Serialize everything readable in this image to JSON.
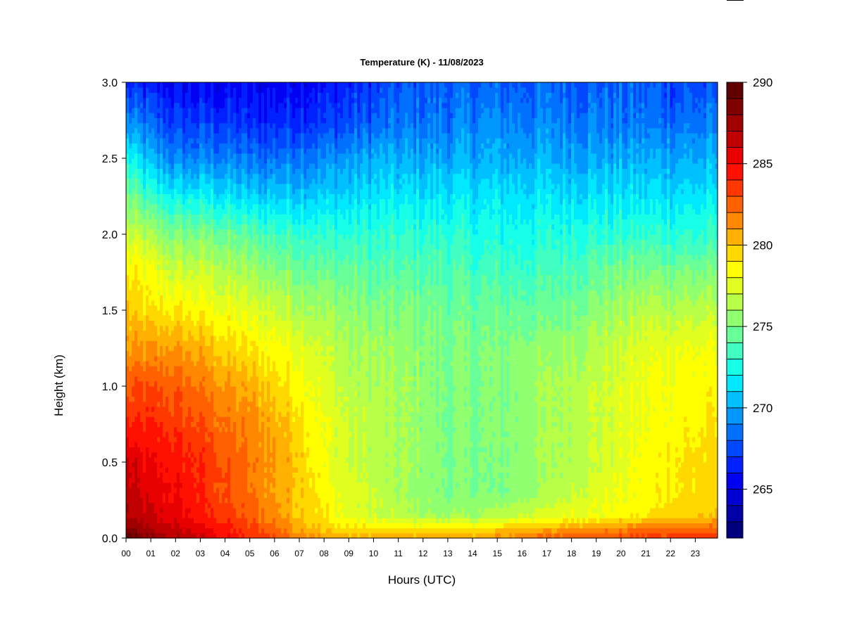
{
  "chart_data": {
    "type": "heatmap",
    "title": "Temperature (K) - 11/08/2023",
    "xlabel": "Hours (UTC)",
    "ylabel": "Height (km)",
    "x_ticks": [
      "00",
      "01",
      "02",
      "03",
      "04",
      "05",
      "06",
      "07",
      "08",
      "09",
      "10",
      "11",
      "12",
      "13",
      "14",
      "15",
      "16",
      "17",
      "18",
      "19",
      "20",
      "21",
      "22",
      "23"
    ],
    "xlim": [
      0,
      23.9
    ],
    "y_ticks": [
      "0.0",
      "0.5",
      "1.0",
      "1.5",
      "2.0",
      "2.5",
      "3.0"
    ],
    "ylim": [
      0,
      3.0
    ],
    "colorbar": {
      "ticks": [
        "265",
        "270",
        "275",
        "280",
        "285",
        "290"
      ],
      "range": [
        262,
        290
      ],
      "levels": 28,
      "colors": [
        "#00007f",
        "#0000a6",
        "#0000d0",
        "#0000f5",
        "#0020ff",
        "#0048ff",
        "#0070ff",
        "#0098ff",
        "#00c0ff",
        "#00e8ff",
        "#18ffe8",
        "#40ffc0",
        "#68ff98",
        "#90ff70",
        "#b8ff48",
        "#e0ff20",
        "#ffff00",
        "#ffd800",
        "#ffb000",
        "#ff8800",
        "#ff6000",
        "#ff3800",
        "#ff1000",
        "#e80000",
        "#c00000",
        "#a00000",
        "#800000",
        "#600000"
      ]
    },
    "temperature_grid": {
      "hours": [
        0,
        1,
        2,
        3,
        4,
        5,
        6,
        7,
        8,
        9,
        10,
        11,
        12,
        13,
        14,
        15,
        16,
        17,
        18,
        19,
        20,
        21,
        22,
        23.9
      ],
      "heights_km": [
        0.0,
        0.05,
        0.15,
        0.3,
        0.5,
        0.75,
        1.0,
        1.25,
        1.5,
        1.75,
        2.0,
        2.25,
        2.5,
        2.75,
        3.0
      ],
      "values_K": [
        [
          289.5,
          288.5,
          287,
          286.5,
          286,
          284,
          282.5,
          281,
          280,
          279,
          277,
          275,
          272.5,
          269,
          266.5
        ],
        [
          288.0,
          287.0,
          286,
          285.5,
          285,
          284,
          283,
          281,
          279,
          278,
          276,
          273,
          270,
          268,
          266
        ],
        [
          287.0,
          286.5,
          285.5,
          285,
          284.5,
          283.5,
          282.5,
          281,
          279,
          277,
          275,
          272,
          269,
          267,
          265.5
        ],
        [
          286.0,
          285.5,
          284.5,
          284,
          284,
          283,
          282,
          280.5,
          278.5,
          277,
          275,
          272,
          269,
          267,
          265.5
        ],
        [
          285.0,
          284.5,
          283.5,
          283,
          283,
          282,
          281,
          279.5,
          278,
          276.5,
          274.5,
          271.5,
          269,
          267,
          265.5
        ],
        [
          284.0,
          283.5,
          282.5,
          282,
          282,
          281.5,
          280.5,
          279,
          277.5,
          276,
          274,
          271,
          268.5,
          266.5,
          265.5
        ],
        [
          283.0,
          282.5,
          281.5,
          281,
          281,
          280.5,
          279.5,
          278.5,
          277,
          275.5,
          273.5,
          271,
          268.5,
          266.5,
          265.5
        ],
        [
          282.0,
          281,
          280,
          280,
          280,
          279.5,
          278.5,
          278,
          276.5,
          275,
          273.5,
          271,
          269,
          267,
          266
        ],
        [
          281.0,
          280,
          279,
          278.5,
          278,
          278,
          277.5,
          277,
          276,
          274.5,
          273,
          271,
          269,
          267,
          266
        ],
        [
          280.5,
          279.5,
          277.5,
          277.5,
          277,
          277,
          276.5,
          276,
          275.5,
          274.5,
          273,
          271,
          269.5,
          267.5,
          266.5
        ],
        [
          280.5,
          279.5,
          277,
          277,
          276.5,
          276.5,
          276,
          276,
          275,
          274,
          273,
          271.5,
          270,
          268,
          267
        ],
        [
          280.5,
          279.5,
          276.5,
          276,
          276,
          276,
          276,
          275.5,
          275,
          274,
          273,
          271.5,
          270,
          268.5,
          267.5
        ],
        [
          281.0,
          279.5,
          276,
          275.5,
          275.5,
          275.5,
          275.5,
          275.5,
          275,
          274,
          273,
          271.5,
          270,
          268.5,
          268
        ],
        [
          281.0,
          279.5,
          276,
          275,
          275,
          275,
          275,
          275,
          274.5,
          274,
          273,
          271.5,
          270,
          268.5,
          268
        ],
        [
          281.0,
          279.5,
          276,
          275,
          275,
          275,
          275,
          275,
          274.5,
          273.5,
          272.5,
          271.5,
          270,
          269,
          268
        ],
        [
          281.0,
          280,
          276.5,
          275,
          275,
          275,
          275,
          275,
          274.5,
          273.5,
          272.5,
          271.5,
          270,
          269,
          268
        ],
        [
          282.0,
          280.5,
          277,
          275.5,
          275.5,
          275.5,
          275.5,
          275.5,
          274.5,
          273.5,
          272.5,
          271.5,
          270,
          269,
          268
        ],
        [
          282.5,
          281,
          277.5,
          276,
          276,
          276,
          276,
          275.5,
          274.5,
          273.5,
          272.5,
          271.5,
          270,
          269,
          268
        ],
        [
          283.0,
          281.5,
          278,
          277,
          276.5,
          276.5,
          276.5,
          276,
          275,
          274,
          273,
          271.5,
          270,
          269,
          268
        ],
        [
          283.0,
          281.5,
          278,
          277.5,
          277,
          277,
          277,
          276.5,
          275.5,
          274.5,
          273,
          271.5,
          270,
          269,
          268
        ],
        [
          283.5,
          282,
          278.5,
          278,
          277.5,
          277.5,
          277.5,
          277,
          276,
          275,
          273,
          271.5,
          270,
          268.5,
          268
        ],
        [
          283.5,
          282.5,
          279,
          278.5,
          278.5,
          278,
          278,
          277.5,
          276.5,
          275,
          273,
          271.5,
          270,
          268.5,
          268
        ],
        [
          283.5,
          282.5,
          279.5,
          279,
          279,
          278.5,
          278.5,
          278,
          276.5,
          275,
          273,
          271.5,
          270,
          268.5,
          267.5
        ],
        [
          283.5,
          282.5,
          280,
          279.5,
          279.5,
          279,
          278.5,
          278,
          276.5,
          275,
          273,
          271.5,
          270,
          268.5,
          267.5
        ]
      ]
    }
  }
}
